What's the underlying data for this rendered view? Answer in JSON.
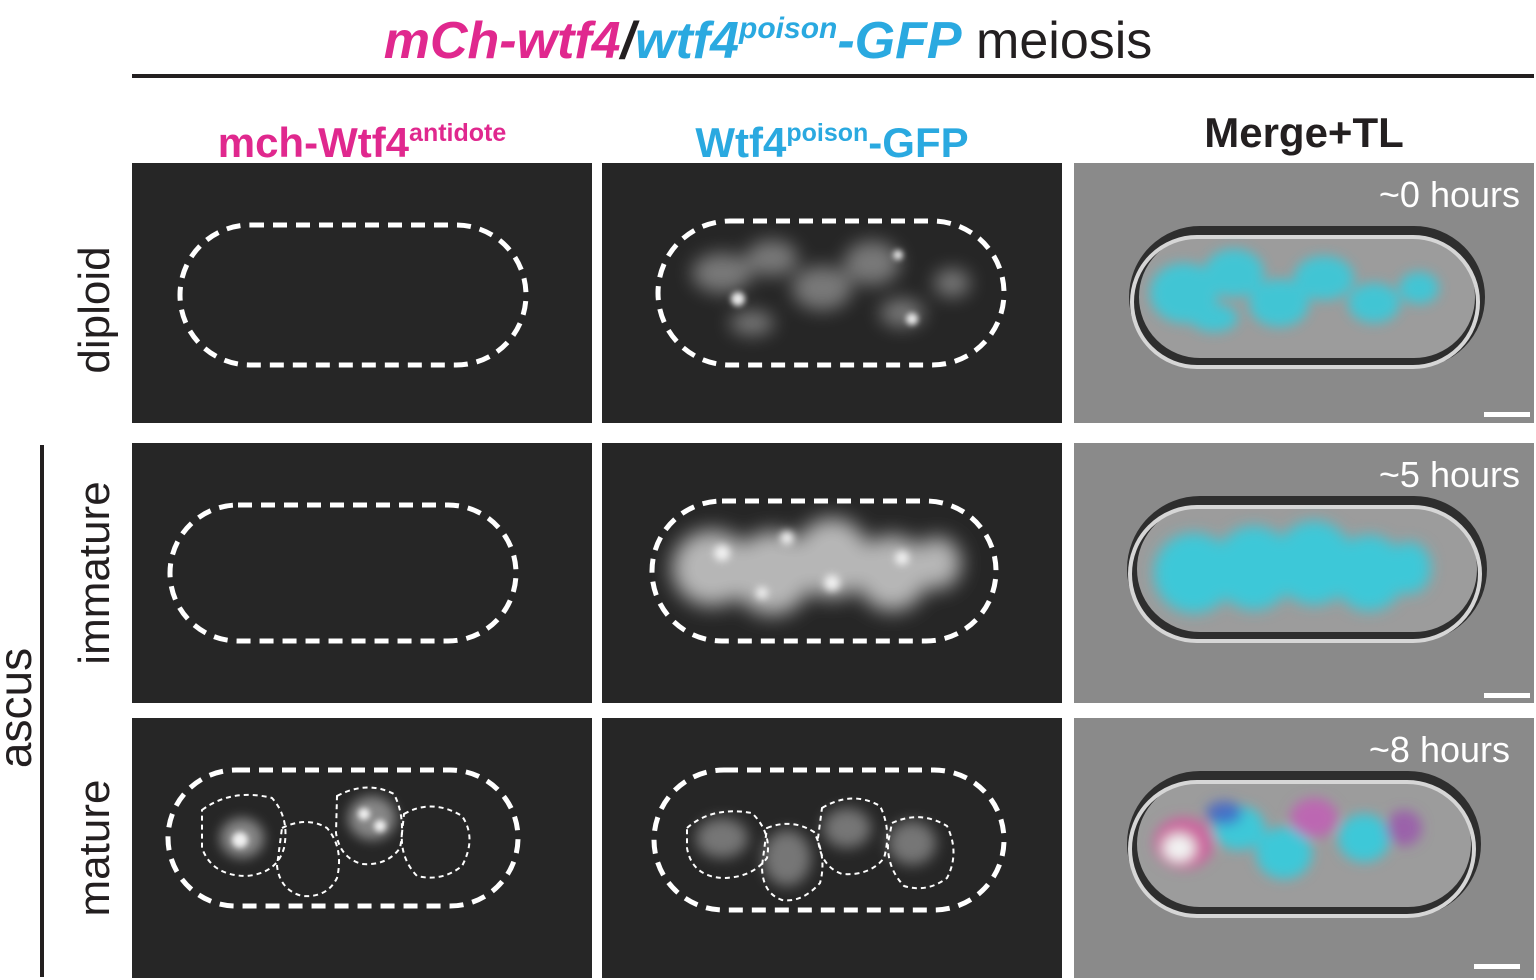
{
  "title": {
    "part1": "mCh-wtf4",
    "separator": "/",
    "part2_main": "wtf4",
    "part2_sup": "poison",
    "part2_tail": "-GFP",
    "tail": "meiosis"
  },
  "columns": {
    "col1": {
      "main": "mch-Wtf4",
      "sup": "antidote"
    },
    "col2": {
      "main": "Wtf4",
      "sup": "poison",
      "tail": "-GFP"
    },
    "col3": {
      "main": "Merge+TL"
    }
  },
  "rows": {
    "diploid": "diploid",
    "immature": "immature",
    "mature": "mature"
  },
  "group_label": "ascus",
  "time_labels": {
    "row1": "~0 hours",
    "row2": "~5 hours",
    "row3": "~8 hours"
  },
  "colors": {
    "magenta": "#e0288e",
    "cyan": "#2aa9e0",
    "text": "#231f20",
    "panel_dark": "#262626",
    "panel_tl": "#8a8a8a"
  }
}
